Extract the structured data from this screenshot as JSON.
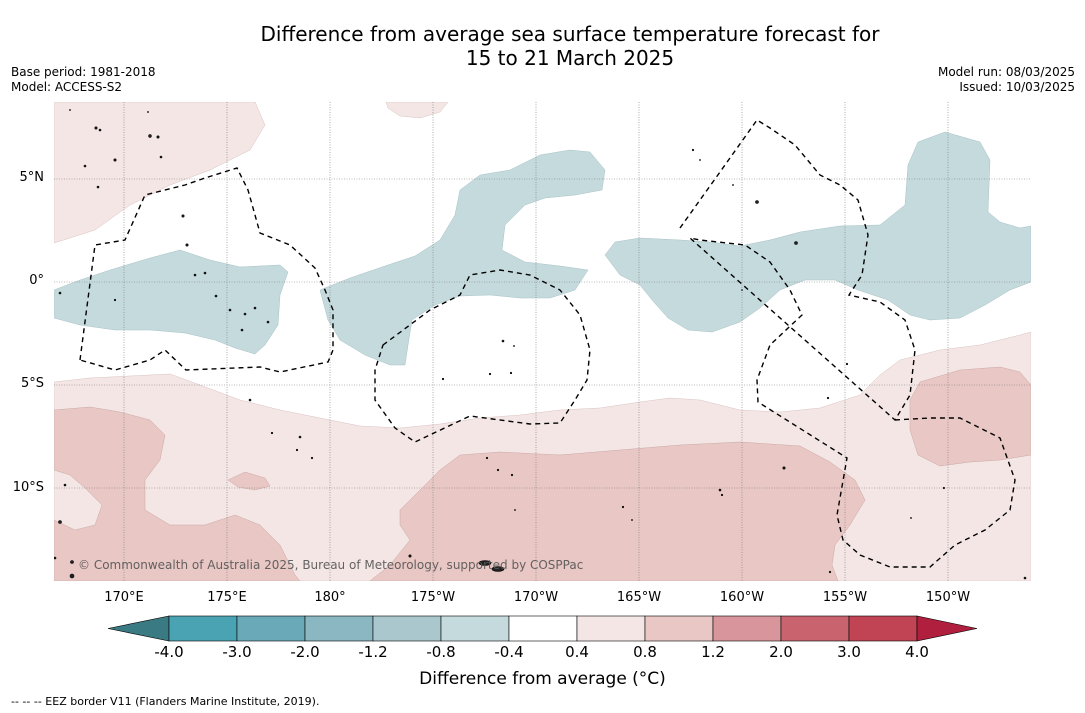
{
  "title_line1": "Difference from average sea surface temperature forecast for",
  "title_line2": "15 to 21 March 2025",
  "meta_left": [
    "Base period: 1981-2018",
    "Model: ACCESS-S2"
  ],
  "meta_right": [
    "Model run: 08/03/2025",
    "Issued: 10/03/2025"
  ],
  "copyright": "© Commonwealth of Australia 2025, Bureau of Meteorology, supported by COSPPac",
  "longitude_labels": [
    "170°E",
    "175°E",
    "180°",
    "175°W",
    "170°W",
    "165°W",
    "160°W",
    "155°W",
    "150°W"
  ],
  "latitude_labels": [
    "5°N",
    "0°",
    "5°S",
    "10°S"
  ],
  "colorbar": {
    "title": "Difference from average (°C)",
    "ticks": [
      "-4.0",
      "-3.0",
      "-2.0",
      "-1.2",
      "-0.8",
      "-0.4",
      "0.4",
      "0.8",
      "1.2",
      "2.0",
      "3.0",
      "4.0"
    ],
    "colors": [
      "#3a7a82",
      "#4aa3b3",
      "#6aaab8",
      "#8ab7c2",
      "#a9c7cc",
      "#c5dadd",
      "#ffffff",
      "#f4e6e5",
      "#e8c7c4",
      "#d8959b",
      "#c9646f",
      "#c14455",
      "#b01f3d"
    ]
  },
  "footer": "-- -- -- EEZ border V11 (Flanders Marine Institute, 2019).",
  "colors": {
    "cool_light": "#c5dadd",
    "warm_light": "#f4e6e5",
    "warm_mid": "#e8c7c4"
  }
}
